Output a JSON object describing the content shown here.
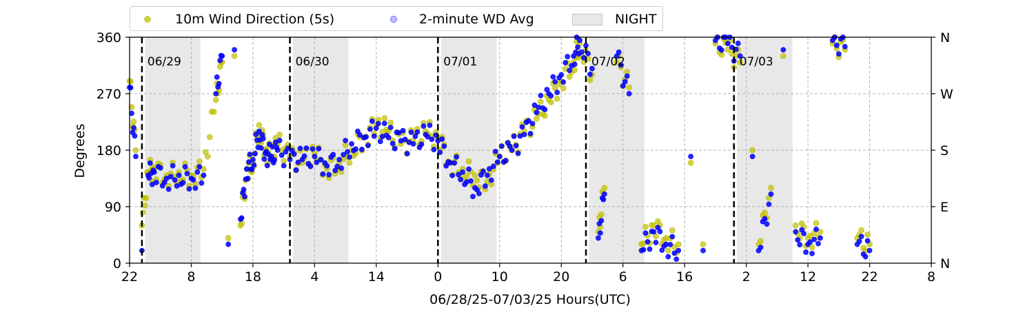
{
  "chart_data": {
    "type": "scatter",
    "title": "",
    "xlabel": "06/28/25-07/03/25  Hours(UTC)",
    "ylabel": "Degrees",
    "ylim": [
      0,
      360
    ],
    "xlim_hours_from_0628_22utc": [
      0,
      130
    ],
    "grid": true,
    "legend_position": "top",
    "y_ticks_left": [
      "0",
      "90",
      "180",
      "270",
      "360"
    ],
    "y_ticks_right": [
      "N",
      "E",
      "S",
      "W",
      "N"
    ],
    "x_tick_labels": [
      "22",
      "8",
      "18",
      "4",
      "14",
      "0",
      "10",
      "20",
      "6",
      "16",
      "2",
      "12",
      "22",
      "8"
    ],
    "day_labels": [
      "06/29",
      "06/30",
      "07/01",
      "07/02",
      "07/03"
    ],
    "night_label": "NIGHT",
    "series": [
      {
        "name": "10m Wind Direction (5s)",
        "color": "#bfbf00",
        "points": [
          [
            0,
            290
          ],
          [
            1,
            180
          ],
          [
            2,
            60
          ],
          [
            3,
            145
          ],
          [
            4,
            150
          ],
          [
            6,
            140
          ],
          [
            8,
            145
          ],
          [
            10,
            140
          ],
          [
            12,
            150
          ],
          [
            14,
            260
          ],
          [
            15,
            320
          ],
          [
            16,
            40
          ],
          [
            17,
            330
          ],
          [
            18,
            60
          ],
          [
            19,
            150
          ],
          [
            20,
            160
          ],
          [
            21,
            220
          ],
          [
            22,
            180
          ],
          [
            23,
            170
          ],
          [
            24,
            190
          ],
          [
            26,
            170
          ],
          [
            28,
            160
          ],
          [
            30,
            175
          ],
          [
            32,
            150
          ],
          [
            34,
            160
          ],
          [
            36,
            180
          ],
          [
            38,
            200
          ],
          [
            40,
            220
          ],
          [
            42,
            210
          ],
          [
            44,
            190
          ],
          [
            46,
            195
          ],
          [
            48,
            210
          ],
          [
            50,
            200
          ],
          [
            52,
            160
          ],
          [
            54,
            150
          ],
          [
            56,
            140
          ],
          [
            58,
            130
          ],
          [
            60,
            170
          ],
          [
            62,
            180
          ],
          [
            64,
            210
          ],
          [
            66,
            230
          ],
          [
            68,
            260
          ],
          [
            70,
            290
          ],
          [
            72,
            320
          ],
          [
            73,
            350
          ],
          [
            75,
            300
          ],
          [
            76,
            50
          ],
          [
            77,
            120
          ],
          [
            79,
            320
          ],
          [
            81,
            280
          ],
          [
            83,
            30
          ],
          [
            85,
            60
          ],
          [
            87,
            40
          ],
          [
            89,
            30
          ],
          [
            91,
            160
          ],
          [
            93,
            30
          ],
          [
            95,
            350
          ],
          [
            97,
            340
          ],
          [
            99,
            320
          ],
          [
            101,
            180
          ],
          [
            102,
            30
          ],
          [
            104,
            120
          ],
          [
            106,
            330
          ],
          [
            108,
            60
          ],
          [
            110,
            40
          ],
          [
            112,
            50
          ],
          [
            114,
            350
          ],
          [
            116,
            340
          ],
          [
            118,
            40
          ],
          [
            120,
            30
          ]
        ]
      },
      {
        "name": "2-minute WD Avg",
        "color": "#0000ff",
        "points": [
          [
            0,
            280
          ],
          [
            1,
            170
          ],
          [
            2,
            20
          ],
          [
            3,
            140
          ],
          [
            4,
            145
          ],
          [
            6,
            135
          ],
          [
            8,
            140
          ],
          [
            10,
            135
          ],
          [
            12,
            140
          ],
          [
            14,
            270
          ],
          [
            15,
            330
          ],
          [
            16,
            30
          ],
          [
            17,
            340
          ],
          [
            18,
            70
          ],
          [
            19,
            150
          ],
          [
            20,
            165
          ],
          [
            21,
            210
          ],
          [
            22,
            175
          ],
          [
            23,
            170
          ],
          [
            24,
            180
          ],
          [
            26,
            165
          ],
          [
            28,
            165
          ],
          [
            30,
            170
          ],
          [
            32,
            155
          ],
          [
            34,
            165
          ],
          [
            36,
            190
          ],
          [
            38,
            200
          ],
          [
            40,
            215
          ],
          [
            42,
            200
          ],
          [
            44,
            195
          ],
          [
            46,
            190
          ],
          [
            48,
            205
          ],
          [
            50,
            195
          ],
          [
            52,
            160
          ],
          [
            54,
            145
          ],
          [
            56,
            120
          ],
          [
            58,
            140
          ],
          [
            60,
            170
          ],
          [
            62,
            180
          ],
          [
            64,
            205
          ],
          [
            66,
            240
          ],
          [
            68,
            270
          ],
          [
            70,
            300
          ],
          [
            72,
            330
          ],
          [
            73,
            355
          ],
          [
            75,
            310
          ],
          [
            76,
            40
          ],
          [
            77,
            110
          ],
          [
            79,
            330
          ],
          [
            81,
            270
          ],
          [
            83,
            20
          ],
          [
            85,
            50
          ],
          [
            87,
            30
          ],
          [
            89,
            20
          ],
          [
            91,
            170
          ],
          [
            93,
            20
          ],
          [
            95,
            355
          ],
          [
            97,
            350
          ],
          [
            99,
            330
          ],
          [
            101,
            170
          ],
          [
            102,
            20
          ],
          [
            104,
            110
          ],
          [
            106,
            340
          ],
          [
            108,
            50
          ],
          [
            110,
            30
          ],
          [
            112,
            40
          ],
          [
            114,
            355
          ],
          [
            116,
            345
          ],
          [
            118,
            30
          ],
          [
            120,
            20
          ]
        ]
      },
      {
        "name": "NIGHT",
        "color": "#e8e8e8",
        "intervals_hours": [
          [
            2.5,
            11.5
          ],
          [
            26.5,
            35.5
          ],
          [
            50.5,
            59.5
          ],
          [
            74.5,
            83.5
          ],
          [
            98.5,
            107.5
          ]
        ]
      }
    ],
    "day_boundaries_hours": [
      2,
      26,
      50,
      74,
      98
    ]
  }
}
